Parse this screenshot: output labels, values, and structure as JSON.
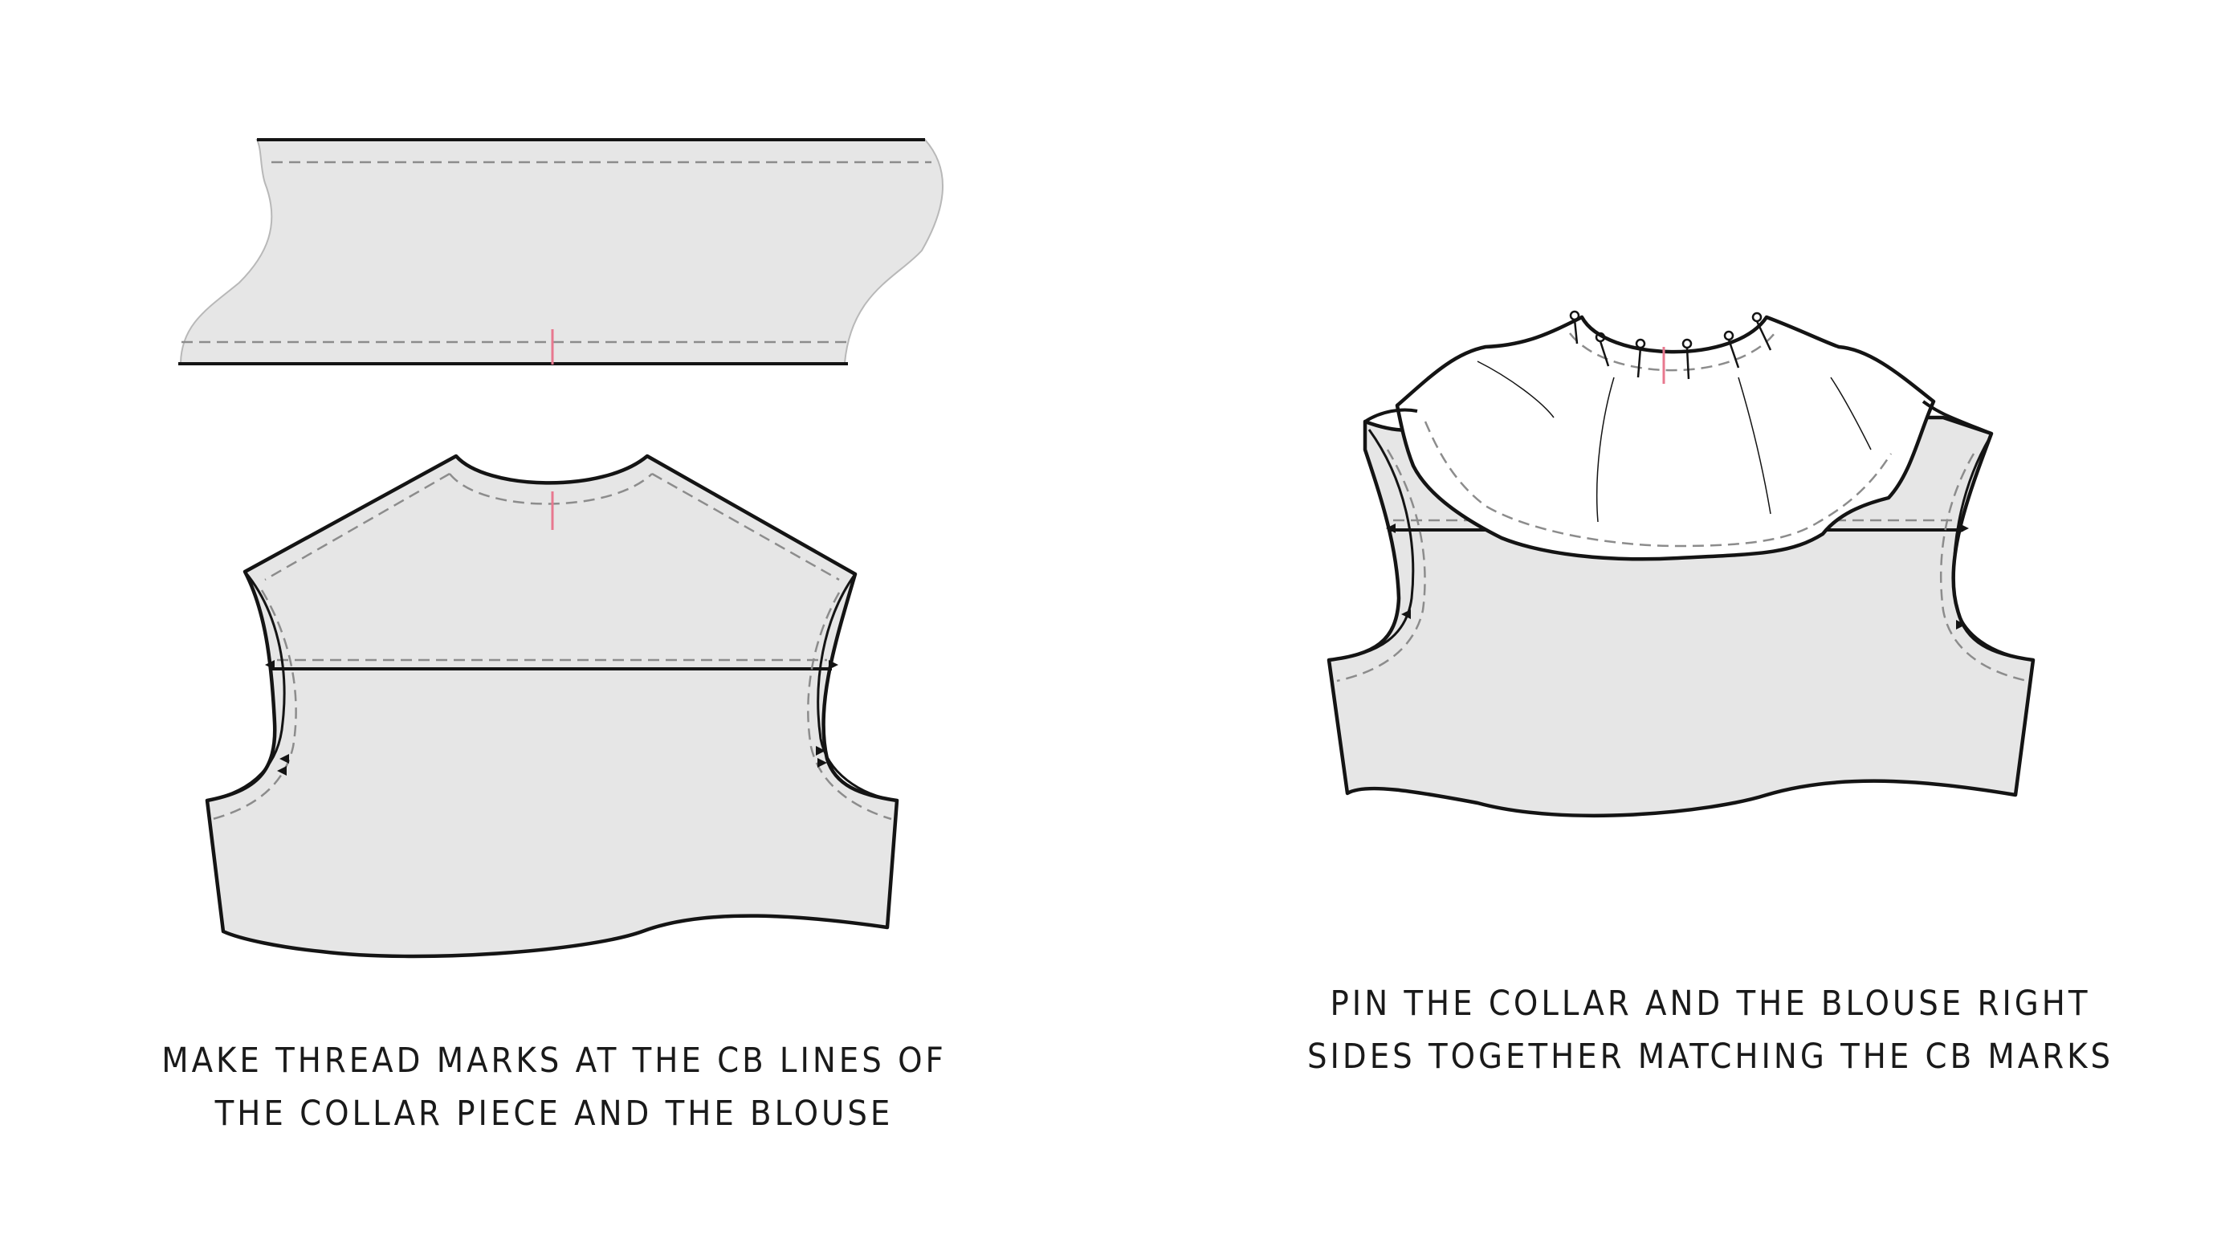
{
  "colors": {
    "fabric": "#e6e6e6",
    "fabric_light": "#ffffff",
    "outline": "#141414",
    "stitch": "#8c8c8c",
    "thread_mark": "#e8788f"
  },
  "captions": {
    "left": {
      "line1": "MAKE THREAD MARKS  AT THE CB LINES OF",
      "line2": "THE COLLAR PIECE AND THE BLOUSE"
    },
    "right": {
      "line1": "PIN THE COLLAR AND THE BLOUSE RIGHT",
      "line2": "SIDES TOGETHER MATCHING THE CB MARKS"
    }
  }
}
